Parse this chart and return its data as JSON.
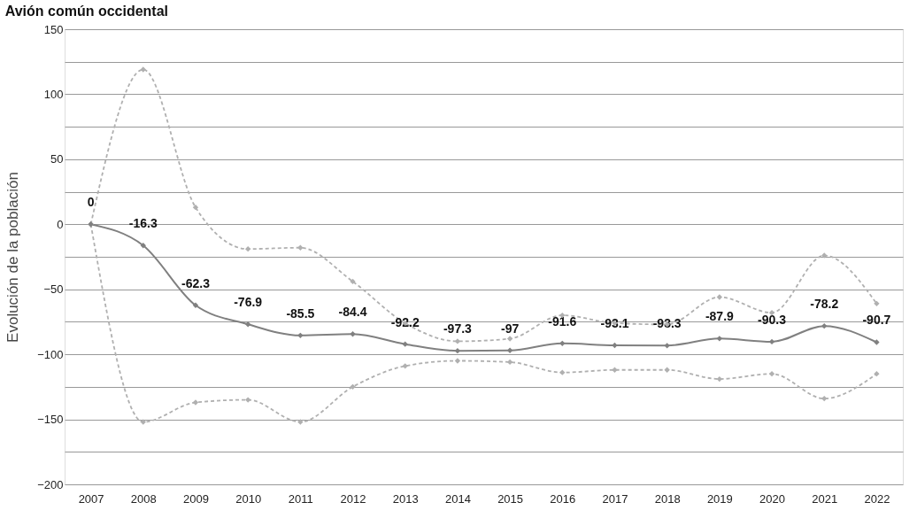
{
  "chart_data": {
    "type": "line",
    "title": "Avión común occidental",
    "ylabel": "Evolución de la población",
    "categories": [
      "2007",
      "2008",
      "2009",
      "2010",
      "2011",
      "2012",
      "2013",
      "2014",
      "2015",
      "2016",
      "2017",
      "2018",
      "2019",
      "2020",
      "2021",
      "2022"
    ],
    "series": [
      {
        "color": "#b0b0b0",
        "line_style": "dashed",
        "values": [
          0,
          119,
          13,
          -19,
          -18,
          -44,
          -76,
          -90,
          -88,
          -70,
          -76,
          -77,
          -56,
          -68,
          -24,
          -61
        ]
      },
      {
        "color": "#b0b0b0",
        "line_style": "dashed",
        "values": [
          0,
          -152,
          -137,
          -135,
          -152,
          -125,
          -109,
          -105,
          -106,
          -114,
          -112,
          -112,
          -119,
          -115,
          -134,
          -115
        ]
      },
      {
        "color": "#808080",
        "line_style": "solid",
        "values": [
          0,
          -16.3,
          -62.3,
          -76.9,
          -85.5,
          -84.4,
          -92.2,
          -97.3,
          -97,
          -91.6,
          -93.1,
          -93.3,
          -87.9,
          -90.3,
          -78.2,
          -90.7
        ],
        "value_labels": [
          "0",
          "-16.3",
          "-62.3",
          "-76.9",
          "-85.5",
          "-84.4",
          "-92.2",
          "-97.3",
          "-97",
          "-91.6",
          "-93.1",
          "-93.3",
          "-87.9",
          "-90.3",
          "-78.2",
          "-90.7"
        ]
      }
    ],
    "ylim": [
      -200,
      150
    ],
    "yticks": [
      -200,
      {
        "value": -175,
        "label": null
      },
      -150,
      {
        "value": -125,
        "label": null
      },
      -100,
      {
        "value": -75,
        "label": null
      },
      -50,
      {
        "value": -25,
        "label": null
      },
      0,
      {
        "value": 25,
        "label": null
      },
      50,
      {
        "value": 75,
        "label": null
      },
      100,
      {
        "value": 125,
        "label": null
      },
      150
    ],
    "grid": "y",
    "marker": "diamond"
  }
}
